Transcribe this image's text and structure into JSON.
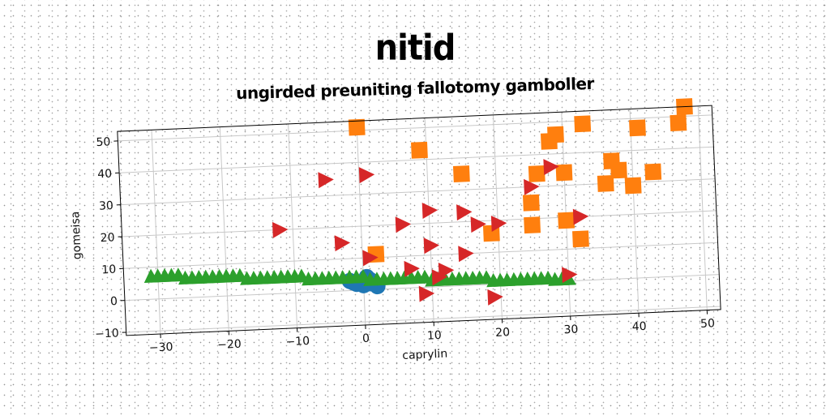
{
  "title": "nitid",
  "subtitle": "ungirded preuniting fallotomy gamboller",
  "chart_data": {
    "type": "scatter",
    "title": "nitid",
    "subtitle": "ungirded preuniting fallotomy gamboller",
    "xlabel": "caprylin",
    "ylabel": "gomeisa",
    "xlim": [
      -35,
      52
    ],
    "ylim": [
      -11,
      53
    ],
    "xticks": [
      -30,
      -20,
      -10,
      0,
      10,
      20,
      30,
      40,
      50
    ],
    "yticks": [
      -10,
      0,
      10,
      20,
      30,
      40,
      50
    ],
    "grid": true,
    "series": [
      {
        "marker": "circle",
        "color": "#1f77b4",
        "points": [
          [
            -2,
            3
          ],
          [
            -1,
            2
          ],
          [
            0,
            1.5
          ],
          [
            1,
            3
          ],
          [
            1,
            2
          ],
          [
            2,
            1
          ],
          [
            0.5,
            4
          ],
          [
            -1.5,
            2.5
          ]
        ]
      },
      {
        "marker": "square",
        "color": "#ff7f0e",
        "points": [
          [
            0,
            51
          ],
          [
            9,
            43
          ],
          [
            15,
            35
          ],
          [
            19,
            16
          ],
          [
            25,
            25
          ],
          [
            25,
            18
          ],
          [
            26,
            34
          ],
          [
            28,
            44
          ],
          [
            29,
            46
          ],
          [
            30,
            34
          ],
          [
            30,
            19
          ],
          [
            32,
            13
          ],
          [
            33,
            49
          ],
          [
            36,
            30
          ],
          [
            37,
            37
          ],
          [
            38,
            34
          ],
          [
            40,
            29
          ],
          [
            41,
            47
          ],
          [
            43,
            33
          ],
          [
            47,
            48
          ],
          [
            48,
            53
          ],
          [
            2,
            11
          ]
        ]
      },
      {
        "marker": "triangle-up",
        "color": "#2ca02c",
        "points": [
          [
            -31,
            7
          ],
          [
            -30,
            7
          ],
          [
            -29,
            7
          ],
          [
            -28,
            7
          ],
          [
            -27,
            7
          ],
          [
            -26,
            6
          ],
          [
            -25,
            6
          ],
          [
            -24,
            6
          ],
          [
            -23,
            6
          ],
          [
            -22,
            6
          ],
          [
            -21,
            6
          ],
          [
            -20,
            6
          ],
          [
            -19,
            6
          ],
          [
            -18,
            6
          ],
          [
            -17,
            5
          ],
          [
            -16,
            5
          ],
          [
            -15,
            5
          ],
          [
            -14,
            5
          ],
          [
            -13,
            5
          ],
          [
            -12,
            5
          ],
          [
            -11,
            5
          ],
          [
            -10,
            5
          ],
          [
            -9,
            5
          ],
          [
            -8,
            4
          ],
          [
            -7,
            4
          ],
          [
            -6,
            4
          ],
          [
            -5,
            4
          ],
          [
            -4,
            4
          ],
          [
            -3,
            4
          ],
          [
            -2,
            4
          ],
          [
            -1,
            4
          ],
          [
            0,
            4
          ],
          [
            1,
            3
          ],
          [
            2,
            3
          ],
          [
            3,
            3
          ],
          [
            4,
            3
          ],
          [
            5,
            3
          ],
          [
            6,
            3
          ],
          [
            7,
            3
          ],
          [
            8,
            3
          ],
          [
            9,
            3
          ],
          [
            10,
            2
          ],
          [
            11,
            2
          ],
          [
            12,
            2
          ],
          [
            13,
            2
          ],
          [
            14,
            2
          ],
          [
            15,
            2
          ],
          [
            16,
            2
          ],
          [
            17,
            2
          ],
          [
            18,
            2
          ],
          [
            19,
            1
          ],
          [
            20,
            1
          ],
          [
            21,
            1
          ],
          [
            22,
            1
          ],
          [
            23,
            1
          ],
          [
            24,
            1
          ],
          [
            25,
            1
          ],
          [
            26,
            1
          ],
          [
            27,
            1
          ],
          [
            28,
            0.5
          ],
          [
            29,
            0.5
          ],
          [
            30,
            0.5
          ]
        ]
      },
      {
        "marker": "triangle-right",
        "color": "#d62728",
        "points": [
          [
            -12,
            20
          ],
          [
            -5,
            35
          ],
          [
            -3,
            15
          ],
          [
            1,
            36
          ],
          [
            1,
            10
          ],
          [
            6,
            20
          ],
          [
            7,
            6
          ],
          [
            9,
            -2
          ],
          [
            10,
            24
          ],
          [
            10,
            13
          ],
          [
            11,
            3
          ],
          [
            12,
            5
          ],
          [
            15,
            23
          ],
          [
            15,
            10
          ],
          [
            17,
            19
          ],
          [
            19,
            -4
          ],
          [
            20,
            19
          ],
          [
            25,
            30
          ],
          [
            28,
            36
          ],
          [
            30,
            2
          ],
          [
            32,
            20
          ]
        ]
      }
    ]
  }
}
